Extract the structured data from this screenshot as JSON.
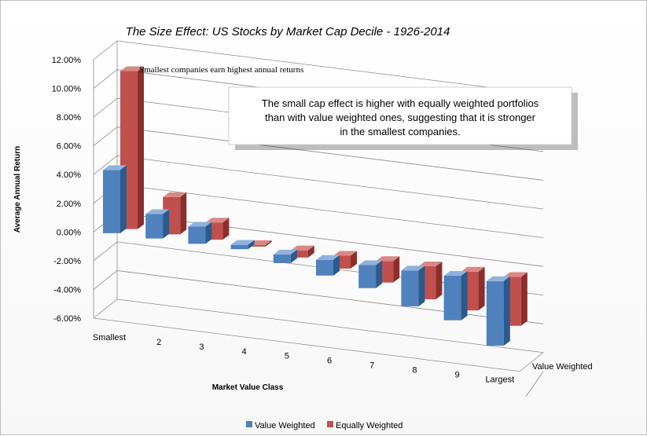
{
  "chart_data": {
    "type": "bar",
    "title": "The Size Effect: US Stocks by Market Cap Decile - 1926-2014",
    "ylabel": "Average Annual Return",
    "xlabel": "Market Value Class",
    "ylim": [
      -6,
      12
    ],
    "y_ticks": [
      "12.00%",
      "10.00%",
      "8.00%",
      "6.00%",
      "4.00%",
      "2.00%",
      "0.00%",
      "-2.00%",
      "-4.00%",
      "-6.00%"
    ],
    "y_tick_values": [
      12,
      10,
      8,
      6,
      4,
      2,
      0,
      -2,
      -4,
      -6
    ],
    "categories": [
      "Smallest",
      "2",
      "3",
      "4",
      "5",
      "6",
      "7",
      "8",
      "9",
      "Largest"
    ],
    "series": [
      {
        "name": "Value Weighted",
        "values": [
          4.4,
          1.7,
          1.2,
          0.3,
          -0.6,
          -1.1,
          -1.6,
          -2.5,
          -3.1,
          -4.5
        ],
        "color": "#4f81bd"
      },
      {
        "name": "Equally Weighted",
        "values": [
          11.0,
          2.6,
          1.2,
          -0.1,
          -0.5,
          -0.9,
          -1.5,
          -2.3,
          -2.7,
          -3.4
        ],
        "color": "#c0504d"
      }
    ],
    "depth_label": "Value Weighted",
    "annotation": "Smallest companies earn highest annual returns",
    "callout_lines": [
      "The small cap effect is higher with equally weighted portfolios",
      "than with value weighted ones, suggesting that it is stronger",
      "in the smallest companies."
    ],
    "legend_position": "bottom",
    "grid": true
  }
}
